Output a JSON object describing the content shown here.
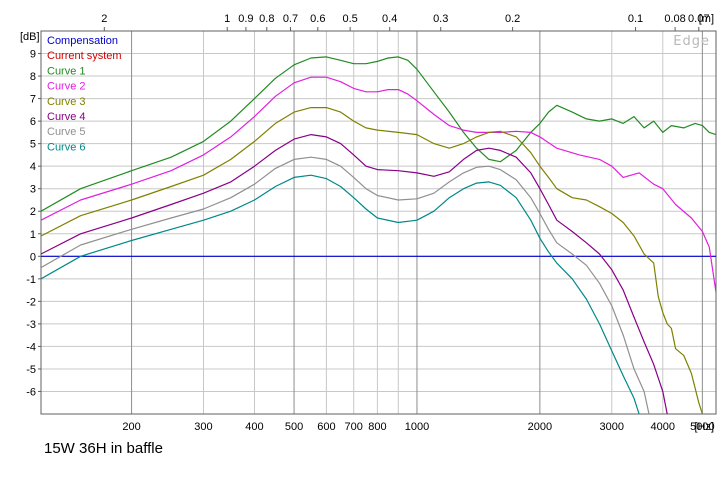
{
  "chart_data": {
    "type": "line",
    "title": "15W 36H in baffle",
    "xlabel": "[Hz]",
    "ylabel": "[dB]",
    "xscale": "log",
    "xlim": [
      120,
      5400
    ],
    "ylim": [
      -7,
      10
    ],
    "y_ticks": [
      "9",
      "8",
      "7",
      "6",
      "5",
      "4",
      "3",
      "2",
      "1",
      "0",
      "-1",
      "-2",
      "-3",
      "-4",
      "-5",
      "-6"
    ],
    "x_ticks": [
      {
        "value": 200,
        "label": "200",
        "major": true
      },
      {
        "value": 300,
        "label": "300",
        "major": false
      },
      {
        "value": 400,
        "label": "400",
        "major": false
      },
      {
        "value": 500,
        "label": "500",
        "major": true
      },
      {
        "value": 600,
        "label": "600",
        "major": false
      },
      {
        "value": 700,
        "label": "700",
        "major": false
      },
      {
        "value": 800,
        "label": "800",
        "major": false
      },
      {
        "value": 1000,
        "label": "1000",
        "major": true
      },
      {
        "value": 2000,
        "label": "2000",
        "major": true
      },
      {
        "value": 3000,
        "label": "3000",
        "major": false
      },
      {
        "value": 4000,
        "label": "4000",
        "major": false
      },
      {
        "value": 5000,
        "label": "5000",
        "major": true
      }
    ],
    "top_axis_label": "[m]",
    "top_ticks": [
      "2",
      "1",
      "0.9",
      "0.8",
      "0.7",
      "0.6",
      "0.5",
      "0.4",
      "0.3",
      "0.2",
      "0.1",
      "0.08",
      "0.07"
    ],
    "watermark": "Edge",
    "grid": true,
    "legend_position": "top-left",
    "series": [
      {
        "name": "Compensation",
        "color": "#0000cc",
        "points": [
          [
            120,
            0
          ],
          [
            5400,
            0
          ]
        ]
      },
      {
        "name": "Current system",
        "color": "#cc0000",
        "points": []
      },
      {
        "name": "Curve 1",
        "color": "#228B22",
        "points": [
          [
            120,
            2.0
          ],
          [
            150,
            3.0
          ],
          [
            200,
            3.8
          ],
          [
            250,
            4.4
          ],
          [
            300,
            5.1
          ],
          [
            350,
            6.0
          ],
          [
            400,
            7.0
          ],
          [
            450,
            7.9
          ],
          [
            500,
            8.5
          ],
          [
            550,
            8.8
          ],
          [
            600,
            8.85
          ],
          [
            650,
            8.7
          ],
          [
            700,
            8.55
          ],
          [
            750,
            8.55
          ],
          [
            800,
            8.65
          ],
          [
            850,
            8.8
          ],
          [
            900,
            8.85
          ],
          [
            950,
            8.7
          ],
          [
            1000,
            8.3
          ],
          [
            1100,
            7.3
          ],
          [
            1200,
            6.4
          ],
          [
            1300,
            5.5
          ],
          [
            1400,
            4.8
          ],
          [
            1500,
            4.3
          ],
          [
            1600,
            4.2
          ],
          [
            1750,
            4.7
          ],
          [
            1900,
            5.5
          ],
          [
            2000,
            5.9
          ],
          [
            2100,
            6.4
          ],
          [
            2200,
            6.7
          ],
          [
            2400,
            6.4
          ],
          [
            2600,
            6.1
          ],
          [
            2800,
            6.0
          ],
          [
            3000,
            6.1
          ],
          [
            3200,
            5.9
          ],
          [
            3400,
            6.2
          ],
          [
            3600,
            5.7
          ],
          [
            3800,
            6.0
          ],
          [
            4000,
            5.5
          ],
          [
            4200,
            5.8
          ],
          [
            4500,
            5.7
          ],
          [
            4800,
            5.9
          ],
          [
            5000,
            5.8
          ],
          [
            5200,
            5.5
          ],
          [
            5400,
            5.4
          ]
        ]
      },
      {
        "name": "Curve 2",
        "color": "#e020e0",
        "points": [
          [
            120,
            1.6
          ],
          [
            150,
            2.5
          ],
          [
            200,
            3.2
          ],
          [
            250,
            3.8
          ],
          [
            300,
            4.5
          ],
          [
            350,
            5.3
          ],
          [
            400,
            6.2
          ],
          [
            450,
            7.1
          ],
          [
            500,
            7.7
          ],
          [
            550,
            7.95
          ],
          [
            600,
            7.95
          ],
          [
            650,
            7.75
          ],
          [
            700,
            7.45
          ],
          [
            750,
            7.3
          ],
          [
            800,
            7.3
          ],
          [
            850,
            7.4
          ],
          [
            900,
            7.4
          ],
          [
            950,
            7.2
          ],
          [
            1000,
            6.9
          ],
          [
            1100,
            6.3
          ],
          [
            1200,
            5.8
          ],
          [
            1300,
            5.6
          ],
          [
            1400,
            5.5
          ],
          [
            1500,
            5.5
          ],
          [
            1600,
            5.5
          ],
          [
            1750,
            5.55
          ],
          [
            1900,
            5.5
          ],
          [
            2000,
            5.3
          ],
          [
            2200,
            4.8
          ],
          [
            2500,
            4.5
          ],
          [
            2800,
            4.3
          ],
          [
            3000,
            4.0
          ],
          [
            3200,
            3.5
          ],
          [
            3500,
            3.7
          ],
          [
            3800,
            3.2
          ],
          [
            4000,
            3.0
          ],
          [
            4300,
            2.3
          ],
          [
            4700,
            1.7
          ],
          [
            5000,
            1.1
          ],
          [
            5200,
            0.4
          ],
          [
            5400,
            -1.6
          ]
        ]
      },
      {
        "name": "Curve 3",
        "color": "#808000",
        "points": [
          [
            120,
            0.9
          ],
          [
            150,
            1.8
          ],
          [
            200,
            2.5
          ],
          [
            250,
            3.1
          ],
          [
            300,
            3.6
          ],
          [
            350,
            4.3
          ],
          [
            400,
            5.1
          ],
          [
            450,
            5.9
          ],
          [
            500,
            6.4
          ],
          [
            550,
            6.6
          ],
          [
            600,
            6.6
          ],
          [
            650,
            6.4
          ],
          [
            700,
            6.0
          ],
          [
            750,
            5.7
          ],
          [
            800,
            5.6
          ],
          [
            900,
            5.5
          ],
          [
            1000,
            5.4
          ],
          [
            1100,
            5.0
          ],
          [
            1200,
            4.8
          ],
          [
            1300,
            5.0
          ],
          [
            1400,
            5.3
          ],
          [
            1500,
            5.5
          ],
          [
            1600,
            5.55
          ],
          [
            1750,
            5.3
          ],
          [
            1900,
            4.6
          ],
          [
            2000,
            4.0
          ],
          [
            2100,
            3.5
          ],
          [
            2200,
            3.0
          ],
          [
            2400,
            2.6
          ],
          [
            2600,
            2.5
          ],
          [
            2800,
            2.2
          ],
          [
            3000,
            1.9
          ],
          [
            3200,
            1.5
          ],
          [
            3400,
            0.9
          ],
          [
            3600,
            0.1
          ],
          [
            3800,
            -0.3
          ],
          [
            3900,
            -1.8
          ],
          [
            4000,
            -2.5
          ],
          [
            4100,
            -3.0
          ],
          [
            4200,
            -3.2
          ],
          [
            4300,
            -4.1
          ],
          [
            4500,
            -4.4
          ],
          [
            4700,
            -5.2
          ],
          [
            4900,
            -6.5
          ],
          [
            5000,
            -7.0
          ]
        ]
      },
      {
        "name": "Curve 4",
        "color": "#880088",
        "points": [
          [
            120,
            0.1
          ],
          [
            150,
            1.0
          ],
          [
            200,
            1.7
          ],
          [
            250,
            2.3
          ],
          [
            300,
            2.8
          ],
          [
            350,
            3.3
          ],
          [
            400,
            4.0
          ],
          [
            450,
            4.7
          ],
          [
            500,
            5.2
          ],
          [
            550,
            5.4
          ],
          [
            600,
            5.3
          ],
          [
            650,
            5.0
          ],
          [
            700,
            4.5
          ],
          [
            750,
            4.0
          ],
          [
            800,
            3.85
          ],
          [
            900,
            3.8
          ],
          [
            1000,
            3.7
          ],
          [
            1100,
            3.55
          ],
          [
            1200,
            3.75
          ],
          [
            1300,
            4.3
          ],
          [
            1400,
            4.7
          ],
          [
            1500,
            4.8
          ],
          [
            1600,
            4.7
          ],
          [
            1750,
            4.4
          ],
          [
            1900,
            3.7
          ],
          [
            2000,
            3.0
          ],
          [
            2100,
            2.3
          ],
          [
            2200,
            1.6
          ],
          [
            2400,
            1.1
          ],
          [
            2600,
            0.6
          ],
          [
            2800,
            0.1
          ],
          [
            3000,
            -0.6
          ],
          [
            3200,
            -1.5
          ],
          [
            3400,
            -2.7
          ],
          [
            3600,
            -3.8
          ],
          [
            3800,
            -4.8
          ],
          [
            4000,
            -6.0
          ],
          [
            4100,
            -7.0
          ]
        ]
      },
      {
        "name": "Curve 5",
        "color": "#909090",
        "points": [
          [
            120,
            -0.5
          ],
          [
            150,
            0.5
          ],
          [
            200,
            1.2
          ],
          [
            250,
            1.7
          ],
          [
            300,
            2.1
          ],
          [
            350,
            2.6
          ],
          [
            400,
            3.2
          ],
          [
            450,
            3.9
          ],
          [
            500,
            4.3
          ],
          [
            550,
            4.4
          ],
          [
            600,
            4.3
          ],
          [
            650,
            4.0
          ],
          [
            700,
            3.5
          ],
          [
            750,
            3.0
          ],
          [
            800,
            2.7
          ],
          [
            900,
            2.5
          ],
          [
            1000,
            2.55
          ],
          [
            1100,
            2.8
          ],
          [
            1200,
            3.3
          ],
          [
            1300,
            3.7
          ],
          [
            1400,
            3.95
          ],
          [
            1500,
            4.0
          ],
          [
            1600,
            3.85
          ],
          [
            1750,
            3.4
          ],
          [
            1900,
            2.6
          ],
          [
            2000,
            1.9
          ],
          [
            2100,
            1.2
          ],
          [
            2200,
            0.6
          ],
          [
            2400,
            0.1
          ],
          [
            2600,
            -0.4
          ],
          [
            2800,
            -1.2
          ],
          [
            3000,
            -2.2
          ],
          [
            3200,
            -3.5
          ],
          [
            3400,
            -5.0
          ],
          [
            3600,
            -6.0
          ],
          [
            3700,
            -7.0
          ]
        ]
      },
      {
        "name": "Curve 6",
        "color": "#008888",
        "points": [
          [
            120,
            -1.0
          ],
          [
            150,
            0.0
          ],
          [
            200,
            0.7
          ],
          [
            250,
            1.2
          ],
          [
            300,
            1.6
          ],
          [
            350,
            2.0
          ],
          [
            400,
            2.5
          ],
          [
            450,
            3.1
          ],
          [
            500,
            3.5
          ],
          [
            550,
            3.6
          ],
          [
            600,
            3.45
          ],
          [
            650,
            3.1
          ],
          [
            700,
            2.6
          ],
          [
            750,
            2.1
          ],
          [
            800,
            1.7
          ],
          [
            900,
            1.5
          ],
          [
            1000,
            1.6
          ],
          [
            1100,
            2.0
          ],
          [
            1200,
            2.6
          ],
          [
            1300,
            3.0
          ],
          [
            1400,
            3.25
          ],
          [
            1500,
            3.3
          ],
          [
            1600,
            3.15
          ],
          [
            1750,
            2.6
          ],
          [
            1900,
            1.6
          ],
          [
            2000,
            0.8
          ],
          [
            2100,
            0.2
          ],
          [
            2200,
            -0.3
          ],
          [
            2400,
            -1.0
          ],
          [
            2600,
            -1.9
          ],
          [
            2800,
            -3.0
          ],
          [
            3000,
            -4.2
          ],
          [
            3200,
            -5.3
          ],
          [
            3400,
            -6.3
          ],
          [
            3500,
            -7.0
          ]
        ]
      }
    ]
  }
}
